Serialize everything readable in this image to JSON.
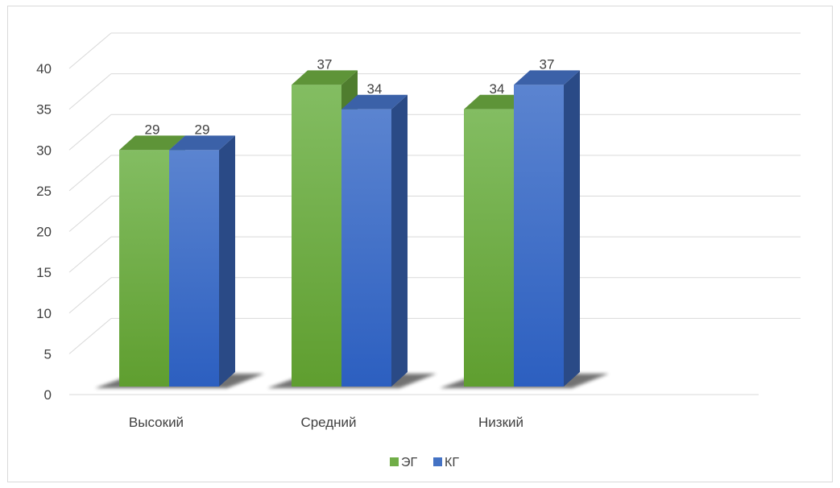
{
  "chart_data": {
    "type": "bar",
    "title": "",
    "xlabel": "",
    "ylabel": "",
    "categories": [
      "Высокий",
      "Средний",
      "Низкий"
    ],
    "series": [
      {
        "name": "ЭГ",
        "values": [
          29,
          37,
          34
        ],
        "color": "#70ad47"
      },
      {
        "name": "КГ",
        "values": [
          29,
          34,
          37
        ],
        "color": "#4472c4"
      }
    ],
    "ylim": [
      0,
      40
    ],
    "y_ticks": [
      "0",
      "5",
      "10",
      "15",
      "20",
      "25",
      "30",
      "35",
      "40"
    ],
    "grid": true,
    "legend_position": "bottom",
    "style": "3d-clustered-column"
  }
}
